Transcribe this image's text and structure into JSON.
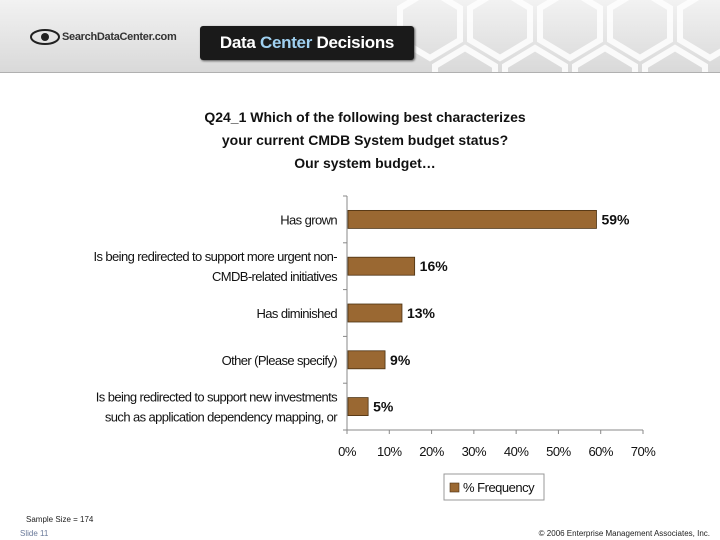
{
  "header": {
    "logo_text": "SearchDataCenter.com",
    "banner_part1": "Data ",
    "banner_accent": "Center",
    "banner_part2": " Decisions"
  },
  "title_lines": [
    "Q24_1 Which of the following best characterizes",
    "your current CMDB System budget status?",
    "Our system budget…"
  ],
  "chart_data": {
    "type": "bar",
    "orientation": "horizontal",
    "categories": [
      [
        "Has grown"
      ],
      [
        "Is being redirected to support more urgent non-",
        "CMDB-related initiatives"
      ],
      [
        "Has diminished"
      ],
      [
        "Other (Please specify)"
      ],
      [
        "Is being redirected to support new investments",
        "such as application dependency mapping, or"
      ]
    ],
    "series": [
      {
        "name": "% Frequency",
        "values": [
          59,
          16,
          13,
          9,
          5
        ],
        "color": "#9a6832"
      }
    ],
    "data_labels": [
      "59%",
      "16%",
      "13%",
      "9%",
      "5%"
    ],
    "xlim": [
      0,
      70
    ],
    "xticks": [
      0,
      10,
      20,
      30,
      40,
      50,
      60,
      70
    ],
    "xtick_labels": [
      "0%",
      "10%",
      "20%",
      "30%",
      "40%",
      "50%",
      "60%",
      "70%"
    ],
    "legend_position": "bottom-center",
    "grid": false
  },
  "footer": {
    "sample_size": "Sample Size = 174",
    "slide": "Slide 11",
    "copyright": "© 2006 Enterprise Management Associates, Inc."
  }
}
